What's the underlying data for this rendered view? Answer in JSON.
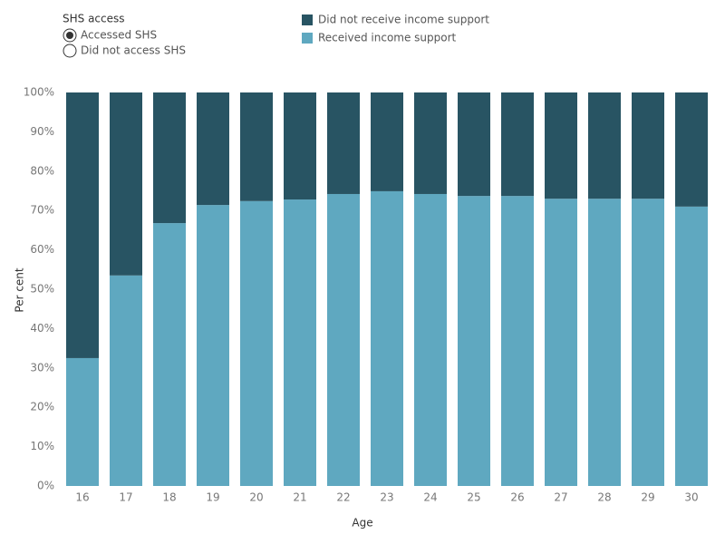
{
  "chart_data": {
    "type": "stacked-bar",
    "controls": {
      "title": "SHS access",
      "options": [
        "Accessed SHS",
        "Did not access SHS"
      ],
      "selected": 0
    },
    "x_label": "Age",
    "y_label": "Per cent",
    "categories": [
      "16",
      "17",
      "18",
      "19",
      "20",
      "21",
      "22",
      "23",
      "24",
      "25",
      "26",
      "27",
      "28",
      "29",
      "30"
    ],
    "series": [
      {
        "name": "Did not receive income support",
        "color": "#285463",
        "values": [
          67.5,
          46.5,
          33.2,
          28.6,
          27.6,
          27.2,
          25.8,
          25.1,
          25.8,
          26.3,
          26.3,
          27,
          27,
          27,
          29
        ]
      },
      {
        "name": "Received income support",
        "color": "#5fa8c0",
        "values": [
          32.5,
          53.5,
          66.8,
          71.4,
          72.4,
          72.8,
          74.2,
          74.9,
          74.2,
          73.7,
          73.7,
          73,
          73,
          73,
          71
        ]
      }
    ],
    "ylim": [
      0,
      100
    ],
    "yticks": [
      {
        "value": 0,
        "label": "0%"
      },
      {
        "value": 10,
        "label": "10%"
      },
      {
        "value": 20,
        "label": "20%"
      },
      {
        "value": 30,
        "label": "30%"
      },
      {
        "value": 40,
        "label": "40%"
      },
      {
        "value": 50,
        "label": "50%"
      },
      {
        "value": 60,
        "label": "60%"
      },
      {
        "value": 70,
        "label": "70%"
      },
      {
        "value": 80,
        "label": "80%"
      },
      {
        "value": 90,
        "label": "90%"
      },
      {
        "value": 100,
        "label": "100%"
      }
    ],
    "grid": false
  }
}
